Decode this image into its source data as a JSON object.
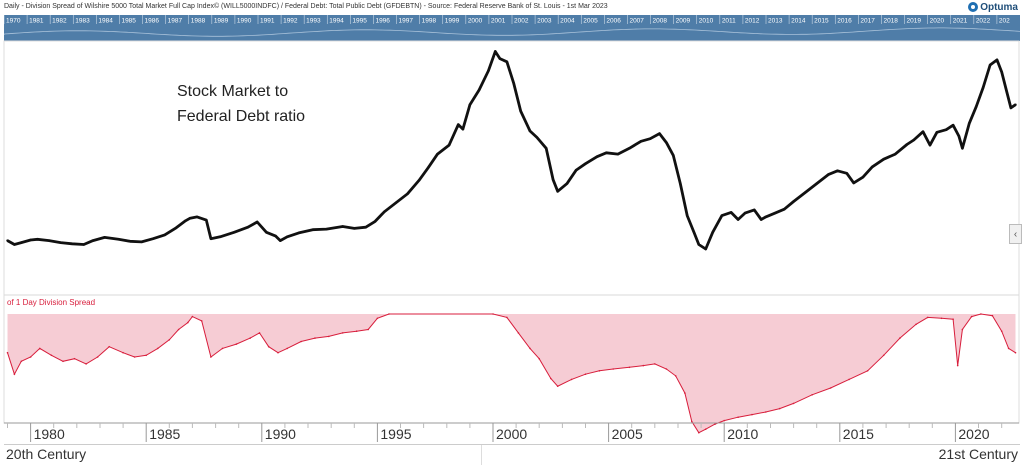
{
  "header": {
    "title": "Daily - Division Spread of Wilshire 5000 Total Market Full Cap Index© (WILL5000INDFC) / Federal Debt: Total Public Debt (GFDEBTN) - Source: Federal Reserve Bank of St. Louis - 1st Mar 2023",
    "logo_text": "Optuma"
  },
  "navigator": {
    "years": [
      "1970",
      "1981",
      "1982",
      "1983",
      "1984",
      "1985",
      "1986",
      "1987",
      "1988",
      "1989",
      "1990",
      "1991",
      "1992",
      "1993",
      "1994",
      "1995",
      "1996",
      "1997",
      "1998",
      "1999",
      "2000",
      "2001",
      "2002",
      "2003",
      "2004",
      "2005",
      "2006",
      "2007",
      "2008",
      "2009",
      "2010",
      "2011",
      "2012",
      "2013",
      "2014",
      "2015",
      "2016",
      "2017",
      "2018",
      "2019",
      "2020",
      "2021",
      "2022",
      "202"
    ]
  },
  "annotation": {
    "line1": "Stock Market to",
    "line2": "Federal Debt ratio"
  },
  "sub_panel_label": "of 1 Day Division Spread",
  "bottom": {
    "left": "20th Century",
    "right": "21st Century"
  },
  "colors": {
    "main_line": "#111111",
    "sub_line": "#d81e3c",
    "sub_fill": "#f5c3cc",
    "navigator": "#4f7da8"
  },
  "icons": {
    "scroll": "chevron-left-icon"
  },
  "chart_data": {
    "type": "line",
    "x_ticks": [
      "1980",
      "1985",
      "1990",
      "1995",
      "2000",
      "2005",
      "2010",
      "2015",
      "2020"
    ],
    "xlim": [
      1978.85,
      2022.75
    ],
    "series": [
      {
        "x": [
          1979.0,
          1979.3,
          1979.6,
          1980.0,
          1980.3,
          1980.8,
          1981.3,
          1981.8,
          1982.3,
          1982.7,
          1983.2,
          1983.8,
          1984.3,
          1984.8,
          1985.3,
          1985.8,
          1986.3,
          1986.7,
          1986.9,
          1987.2,
          1987.6,
          1987.8,
          1988.2,
          1988.8,
          1989.4,
          1989.8,
          1990.2,
          1990.6,
          1990.8,
          1991.1,
          1991.6,
          1992.2,
          1992.8,
          1993.5,
          1994.0,
          1994.5,
          1994.9,
          1995.3,
          1995.8,
          1996.3,
          1996.8,
          1997.2,
          1997.6,
          1998.1,
          1998.5,
          1998.7,
          1999.0,
          1999.4,
          1999.8,
          2000.1,
          2000.3,
          2000.6,
          2000.9,
          2001.2,
          2001.6,
          2001.9,
          2002.3,
          2002.6,
          2002.8,
          2003.2,
          2003.6,
          2004.0,
          2004.5,
          2004.9,
          2005.4,
          2005.9,
          2006.4,
          2006.8,
          2007.2,
          2007.5,
          2007.8,
          2008.1,
          2008.4,
          2008.7,
          2008.9,
          2009.2,
          2009.5,
          2009.9,
          2010.3,
          2010.6,
          2010.9,
          2011.3,
          2011.6,
          2011.8,
          2012.2,
          2012.6,
          2013.0,
          2013.5,
          2014.0,
          2014.5,
          2014.9,
          2015.3,
          2015.6,
          2016.0,
          2016.4,
          2016.9,
          2017.4,
          2017.9,
          2018.2,
          2018.6,
          2018.9,
          2019.2,
          2019.6,
          2019.9,
          2020.15,
          2020.3,
          2020.6,
          2020.9,
          2021.2,
          2021.5,
          2021.8,
          2022.0,
          2022.2,
          2022.4,
          2022.6
        ],
        "y": [
          0.53,
          0.47,
          0.5,
          0.54,
          0.55,
          0.53,
          0.5,
          0.48,
          0.47,
          0.53,
          0.58,
          0.55,
          0.52,
          0.51,
          0.56,
          0.62,
          0.73,
          0.84,
          0.88,
          0.9,
          0.85,
          0.56,
          0.59,
          0.66,
          0.74,
          0.82,
          0.66,
          0.6,
          0.53,
          0.59,
          0.65,
          0.7,
          0.71,
          0.75,
          0.72,
          0.74,
          0.83,
          0.98,
          1.12,
          1.26,
          1.47,
          1.67,
          1.88,
          2.02,
          2.34,
          2.27,
          2.65,
          2.88,
          3.18,
          3.48,
          3.37,
          3.32,
          2.98,
          2.55,
          2.24,
          2.14,
          1.97,
          1.48,
          1.3,
          1.42,
          1.63,
          1.73,
          1.84,
          1.9,
          1.88,
          1.97,
          2.08,
          2.12,
          2.2,
          2.06,
          1.86,
          1.42,
          0.92,
          0.65,
          0.47,
          0.4,
          0.66,
          0.92,
          0.97,
          0.86,
          0.96,
          1.01,
          0.86,
          0.9,
          0.96,
          1.02,
          1.14,
          1.28,
          1.42,
          1.56,
          1.62,
          1.58,
          1.43,
          1.52,
          1.68,
          1.8,
          1.88,
          2.03,
          2.1,
          2.23,
          2.02,
          2.22,
          2.26,
          2.33,
          2.16,
          1.97,
          2.36,
          2.62,
          2.92,
          3.27,
          3.35,
          3.16,
          2.88,
          2.6,
          2.65
        ]
      },
      {
        "name": "1 Day Division Spread",
        "x": [
          1979.0,
          1979.3,
          1979.6,
          1980.0,
          1980.4,
          1980.9,
          1981.4,
          1981.9,
          1982.4,
          1982.9,
          1983.4,
          1984.0,
          1984.5,
          1985.0,
          1985.5,
          1986.0,
          1986.4,
          1986.8,
          1987.0,
          1987.4,
          1987.8,
          1988.3,
          1988.9,
          1989.5,
          1989.9,
          1990.3,
          1990.7,
          1991.1,
          1991.7,
          1992.3,
          1992.9,
          1993.5,
          1994.1,
          1994.6,
          1995.0,
          1995.5,
          2000.0,
          2000.6,
          2001.1,
          2001.6,
          2002.0,
          2002.5,
          2002.8,
          2003.4,
          2004.0,
          2004.6,
          2005.2,
          2005.9,
          2006.5,
          2007.0,
          2007.5,
          2007.9,
          2008.3,
          2008.6,
          2008.9,
          2009.2,
          2009.6,
          2010.0,
          2010.6,
          2011.2,
          2011.8,
          2012.4,
          2013.0,
          2013.8,
          2014.6,
          2015.4,
          2016.2,
          2016.9,
          2017.6,
          2018.3,
          2018.8,
          2019.4,
          2019.9,
          2020.1,
          2020.3,
          2020.7,
          2021.1,
          2021.6,
          2022.0,
          2022.3,
          2022.6
        ],
        "y": [
          0.55,
          0.3,
          0.45,
          0.5,
          0.6,
          0.52,
          0.45,
          0.48,
          0.42,
          0.5,
          0.62,
          0.55,
          0.5,
          0.52,
          0.6,
          0.7,
          0.82,
          0.9,
          0.97,
          0.92,
          0.5,
          0.6,
          0.65,
          0.72,
          0.78,
          0.62,
          0.55,
          0.6,
          0.68,
          0.72,
          0.74,
          0.78,
          0.8,
          0.82,
          0.95,
          1.0,
          1.0,
          0.96,
          0.78,
          0.6,
          0.48,
          0.25,
          0.16,
          0.24,
          0.3,
          0.34,
          0.36,
          0.38,
          0.4,
          0.42,
          0.36,
          0.28,
          0.08,
          -0.25,
          -0.38,
          -0.34,
          -0.28,
          -0.24,
          -0.2,
          -0.17,
          -0.14,
          -0.1,
          -0.04,
          0.06,
          0.14,
          0.24,
          0.34,
          0.52,
          0.72,
          0.88,
          0.96,
          0.95,
          0.94,
          0.4,
          0.82,
          0.97,
          1.0,
          0.98,
          0.8,
          0.6,
          0.55
        ]
      }
    ]
  }
}
